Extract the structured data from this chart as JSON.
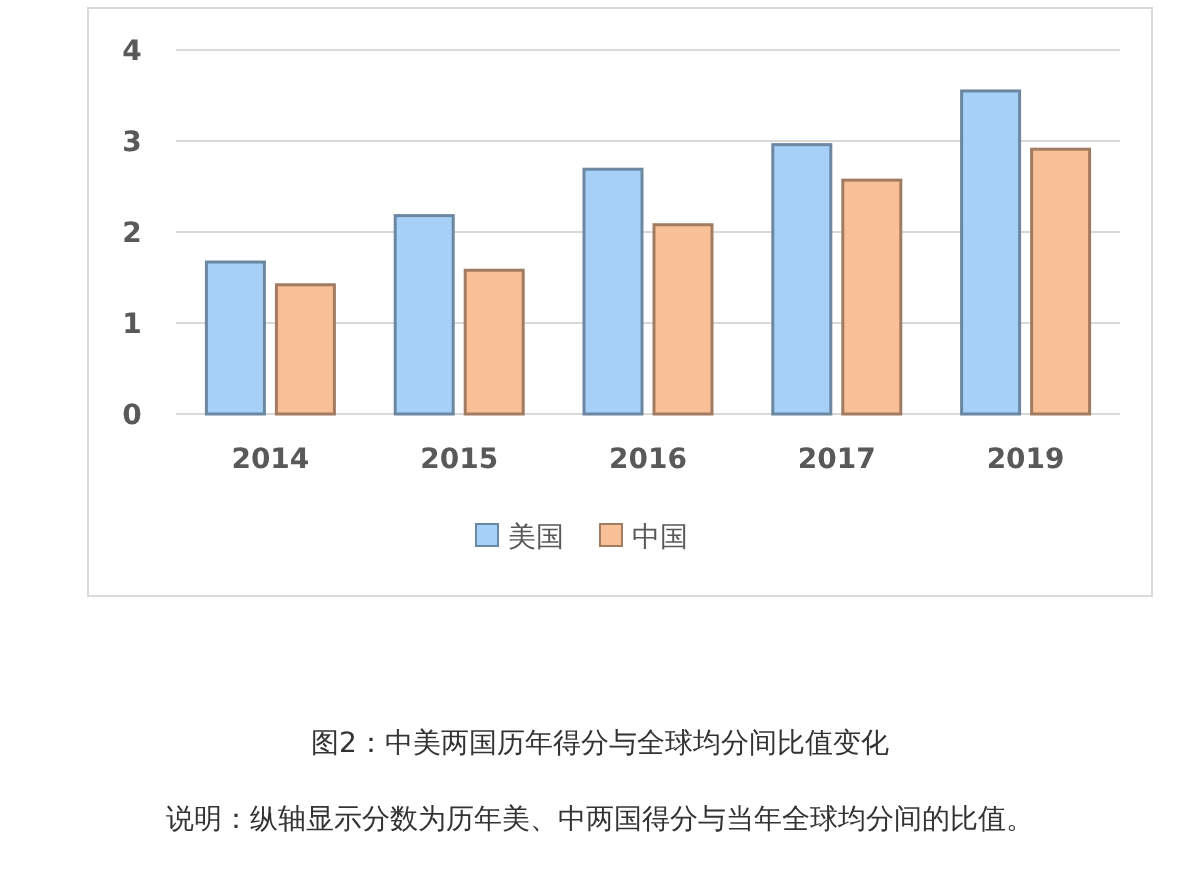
{
  "chart_data": {
    "type": "bar",
    "title": "图2：中美两国历年得分与全球均分间比值变化",
    "annotations": [
      "说明：纵轴显示分数为历年美、中两国得分与当年全球均分间的比值。"
    ],
    "categories": [
      "2014",
      "2015",
      "2016",
      "2017",
      "2019"
    ],
    "series": [
      {
        "name": "美国",
        "color": "#a6d0f7",
        "values": [
          1.67,
          2.18,
          2.69,
          2.96,
          3.55
        ]
      },
      {
        "name": "中国",
        "color": "#f9bf96",
        "values": [
          1.42,
          1.58,
          2.08,
          2.57,
          2.91
        ]
      }
    ],
    "ylim": [
      0,
      4
    ],
    "yticks": [
      0,
      1,
      2,
      3,
      4
    ],
    "grid": "y",
    "legend": "bottom"
  }
}
